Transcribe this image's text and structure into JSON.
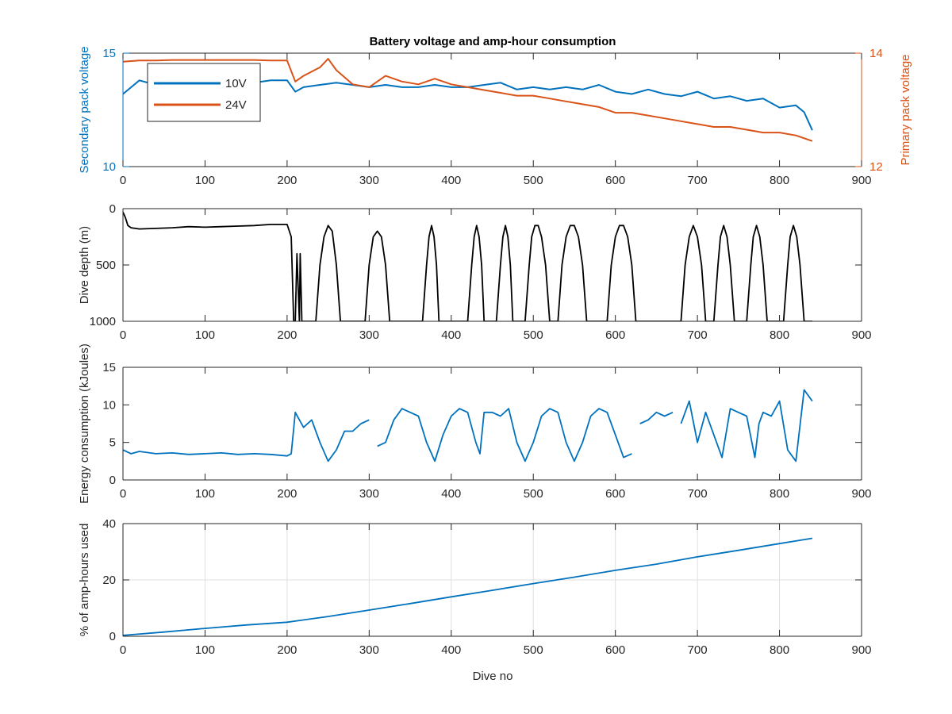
{
  "figure": {
    "title": "Battery voltage and amp-hour consumption",
    "xlabel": "Dive no"
  },
  "colors": {
    "blue": "#0072BD",
    "orange": "#D95319",
    "black": "#000000",
    "axis": "#262626",
    "grid": "#dfdfdf"
  },
  "chart_data": [
    {
      "type": "line",
      "title": "Battery voltage and amp-hour consumption",
      "xlabel": "",
      "ylabel": "Secondary pack voltage",
      "ylabel_right": "Primary pack voltage",
      "xlim": [
        0,
        900
      ],
      "ylim": [
        10,
        15
      ],
      "ylim_right": [
        12,
        14
      ],
      "xticks": [
        0,
        100,
        200,
        300,
        400,
        500,
        600,
        700,
        800,
        900
      ],
      "yticks": [
        10,
        15
      ],
      "yticks_right": [
        12,
        14
      ],
      "grid": false,
      "legend": {
        "placement": "top-left",
        "entries": [
          "10V",
          "24V"
        ]
      },
      "series": [
        {
          "name": "10V",
          "axis": "left",
          "color": "#0072BD",
          "x": [
            0,
            20,
            40,
            60,
            80,
            100,
            120,
            140,
            160,
            180,
            200,
            210,
            220,
            240,
            260,
            280,
            300,
            320,
            340,
            360,
            380,
            400,
            420,
            440,
            460,
            480,
            500,
            520,
            540,
            560,
            580,
            600,
            620,
            640,
            660,
            680,
            700,
            720,
            740,
            760,
            780,
            800,
            820,
            830,
            840
          ],
          "y": [
            13.2,
            13.8,
            13.6,
            13.8,
            13.6,
            13.7,
            13.8,
            13.6,
            13.7,
            13.8,
            13.8,
            13.3,
            13.5,
            13.6,
            13.7,
            13.6,
            13.5,
            13.6,
            13.5,
            13.5,
            13.6,
            13.5,
            13.5,
            13.6,
            13.7,
            13.4,
            13.5,
            13.4,
            13.5,
            13.4,
            13.6,
            13.3,
            13.2,
            13.4,
            13.2,
            13.1,
            13.3,
            13.0,
            13.1,
            12.9,
            13.0,
            12.6,
            12.7,
            12.4,
            11.6
          ]
        },
        {
          "name": "24V",
          "axis": "right",
          "color": "#D95319",
          "x": [
            0,
            20,
            40,
            60,
            80,
            100,
            120,
            140,
            160,
            180,
            200,
            210,
            220,
            240,
            250,
            260,
            280,
            300,
            320,
            340,
            360,
            380,
            400,
            420,
            440,
            460,
            480,
            500,
            520,
            540,
            560,
            580,
            600,
            620,
            640,
            660,
            680,
            700,
            720,
            740,
            760,
            780,
            800,
            820,
            840
          ],
          "y": [
            13.85,
            13.87,
            13.87,
            13.88,
            13.88,
            13.88,
            13.88,
            13.88,
            13.88,
            13.87,
            13.87,
            13.5,
            13.6,
            13.75,
            13.9,
            13.7,
            13.45,
            13.4,
            13.6,
            13.5,
            13.45,
            13.55,
            13.45,
            13.4,
            13.35,
            13.3,
            13.25,
            13.25,
            13.2,
            13.15,
            13.1,
            13.05,
            12.95,
            12.95,
            12.9,
            12.85,
            12.8,
            12.75,
            12.7,
            12.7,
            12.65,
            12.6,
            12.6,
            12.55,
            12.45
          ]
        }
      ]
    },
    {
      "type": "line",
      "ylabel": "Dive depth (m)",
      "xlim": [
        0,
        900
      ],
      "ylim": [
        0,
        1000
      ],
      "y_reversed": true,
      "xticks": [
        0,
        100,
        200,
        300,
        400,
        500,
        600,
        700,
        800,
        900
      ],
      "yticks": [
        0,
        500,
        1000
      ],
      "grid": false,
      "series": [
        {
          "color": "#000000",
          "x": [
            0,
            3,
            6,
            10,
            20,
            40,
            60,
            80,
            100,
            120,
            140,
            160,
            180,
            200,
            205,
            208,
            210,
            212,
            215,
            216,
            218,
            219,
            222,
            235,
            240,
            245,
            250,
            255,
            260,
            265,
            270,
            295,
            300,
            305,
            310,
            315,
            320,
            325,
            330,
            335,
            340,
            365,
            370,
            373,
            376,
            379,
            382,
            385,
            390,
            420,
            425,
            428,
            431,
            434,
            437,
            440,
            445,
            455,
            460,
            463,
            466,
            469,
            472,
            475,
            480,
            490,
            495,
            498,
            502,
            506,
            510,
            515,
            520,
            525,
            530,
            535,
            540,
            545,
            550,
            555,
            560,
            565,
            570,
            590,
            595,
            600,
            605,
            610,
            615,
            620,
            625,
            630,
            680,
            685,
            690,
            695,
            700,
            705,
            710,
            720,
            725,
            728,
            732,
            736,
            740,
            745,
            760,
            765,
            768,
            772,
            776,
            780,
            785,
            805,
            810,
            813,
            817,
            821,
            825,
            830,
            840
          ],
          "y": [
            30,
            80,
            150,
            170,
            180,
            175,
            170,
            160,
            165,
            160,
            155,
            150,
            140,
            140,
            250,
            1000,
            1000,
            400,
            1000,
            400,
            1000,
            1000,
            1000,
            1000,
            500,
            250,
            150,
            200,
            500,
            1000,
            1000,
            1000,
            500,
            250,
            200,
            250,
            500,
            1000,
            1000,
            1000,
            1000,
            1000,
            500,
            250,
            150,
            250,
            500,
            1000,
            1000,
            1000,
            500,
            250,
            150,
            250,
            500,
            1000,
            1000,
            1000,
            500,
            250,
            150,
            250,
            500,
            1000,
            1000,
            1000,
            500,
            250,
            150,
            150,
            250,
            500,
            1000,
            1000,
            1000,
            500,
            250,
            150,
            150,
            250,
            500,
            1000,
            1000,
            1000,
            500,
            250,
            150,
            150,
            250,
            500,
            1000,
            1000,
            1000,
            500,
            250,
            150,
            250,
            500,
            1000,
            1000,
            500,
            250,
            150,
            250,
            500,
            1000,
            1000,
            500,
            250,
            150,
            250,
            500,
            1000,
            1000,
            500,
            250,
            150,
            250,
            500,
            1000,
            1000
          ]
        }
      ]
    },
    {
      "type": "line",
      "ylabel": "Energy consumption (kJoules)",
      "xlim": [
        0,
        900
      ],
      "ylim": [
        0,
        15
      ],
      "xticks": [
        0,
        100,
        200,
        300,
        400,
        500,
        600,
        700,
        800,
        900
      ],
      "yticks": [
        0,
        5,
        10,
        15
      ],
      "grid": false,
      "series": [
        {
          "color": "#0072BD",
          "x": [
            0,
            10,
            20,
            40,
            60,
            80,
            100,
            120,
            140,
            160,
            180,
            200,
            205,
            210,
            220,
            230,
            240,
            250,
            260,
            270,
            280,
            290,
            300,
            305,
            310,
            320,
            330,
            340,
            350,
            360,
            370,
            380,
            390,
            400,
            410,
            420,
            430,
            435,
            440,
            450,
            460,
            470,
            480,
            490,
            500,
            510,
            520,
            530,
            540,
            550,
            560,
            570,
            580,
            590,
            600,
            610,
            620,
            625,
            630,
            640,
            650,
            660,
            670,
            675,
            680,
            690,
            700,
            710,
            720,
            730,
            740,
            750,
            760,
            770,
            775,
            780,
            790,
            800,
            810,
            820,
            830,
            840
          ],
          "y": [
            4,
            3.5,
            3.8,
            3.5,
            3.6,
            3.4,
            3.5,
            3.6,
            3.4,
            3.5,
            3.4,
            3.2,
            3.5,
            9,
            7,
            8,
            5,
            2.5,
            4,
            6.5,
            6.5,
            7.5,
            8,
            null,
            4.5,
            5,
            8,
            9.5,
            9,
            8.5,
            5,
            2.5,
            6,
            8.5,
            9.5,
            9,
            5,
            3.5,
            9,
            9,
            8.5,
            9.5,
            5,
            2.5,
            5,
            8.5,
            9.5,
            9,
            5,
            2.5,
            5,
            8.5,
            9.5,
            9,
            6,
            3,
            3.5,
            null,
            7.5,
            8,
            9,
            8.5,
            9,
            null,
            7.5,
            10.5,
            5,
            9,
            6,
            3,
            9.5,
            9,
            8.5,
            3,
            7.5,
            9,
            8.5,
            10.5,
            4,
            2.5,
            12,
            10.5
          ]
        }
      ]
    },
    {
      "type": "line",
      "ylabel": "% of amp-hours used",
      "xlabel": "Dive no",
      "xlim": [
        0,
        900
      ],
      "ylim": [
        0,
        40
      ],
      "xticks": [
        0,
        100,
        200,
        300,
        400,
        500,
        600,
        700,
        800,
        900
      ],
      "yticks": [
        0,
        20,
        40
      ],
      "grid": true,
      "series": [
        {
          "color": "#0072BD",
          "x": [
            0,
            50,
            100,
            150,
            200,
            250,
            300,
            350,
            400,
            450,
            500,
            550,
            600,
            650,
            700,
            750,
            800,
            840
          ],
          "y": [
            0.3,
            1.5,
            2.8,
            4.0,
            5.0,
            7.0,
            9.3,
            11.6,
            14.0,
            16.3,
            18.7,
            21.0,
            23.4,
            25.6,
            28.2,
            30.5,
            32.9,
            34.8
          ]
        }
      ]
    }
  ]
}
